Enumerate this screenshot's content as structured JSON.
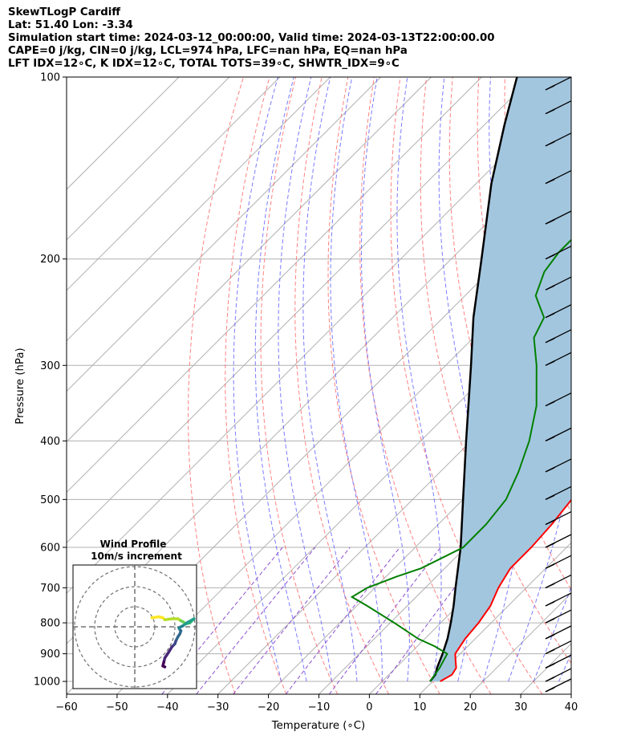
{
  "header": {
    "line1": "SkewTLogP Cardiff",
    "line2": "Lat: 51.40   Lon: -3.34",
    "line3": "Simulation start time: 2024-03-12_00:00:00, Valid time: 2024-03-13T22:00:00.00",
    "line4": "CAPE=0 j/kg, CIN=0 j/kg, LCL=974 hPa, LFC=nan hPa, EQ=nan hPa",
    "line5": "LFT IDX=12∘C, K IDX=12∘C, TOTAL TOTS=39∘C, SHWTR_IDX=9∘C"
  },
  "chart_data": {
    "type": "line",
    "xlabel": "Temperature (∘C)",
    "ylabel": "Pressure (hPa)",
    "xlim": [
      -60,
      40
    ],
    "ylim": [
      1050,
      100
    ],
    "yscale": "log",
    "skew": "45°",
    "grid": true,
    "x_ticks": [
      -60,
      -50,
      -40,
      -30,
      -20,
      -10,
      0,
      10,
      20,
      30,
      40
    ],
    "y_ticks": [
      100,
      200,
      300,
      400,
      500,
      600,
      700,
      800,
      900,
      1000
    ],
    "colors": {
      "temperature": "#ff0000",
      "dewpoint": "#008000",
      "parcel": "#000000",
      "shade": "#a3c6df",
      "dry_adiabats": "#ff6b6b",
      "moist_adiabats": "#5a5aff",
      "mixing_ratio": "#8d4fd1",
      "isotherms": "#b0b0b0"
    },
    "series": [
      {
        "role": "temperature",
        "points": [
          [
            1000,
            11.5
          ],
          [
            975,
            12.5
          ],
          [
            950,
            12.0
          ],
          [
            925,
            10.5
          ],
          [
            900,
            9.0
          ],
          [
            850,
            8.0
          ],
          [
            800,
            7.5
          ],
          [
            750,
            6.5
          ],
          [
            700,
            4.5
          ],
          [
            650,
            3.0
          ],
          [
            600,
            3.0
          ],
          [
            550,
            2.5
          ],
          [
            500,
            1.5
          ],
          [
            450,
            -1.0
          ],
          [
            400,
            -4.5
          ],
          [
            350,
            -10.5
          ],
          [
            300,
            -17.5
          ],
          [
            250,
            -25.5
          ],
          [
            230,
            -28.5
          ],
          [
            210,
            -28.3
          ],
          [
            190,
            -25.0
          ],
          [
            170,
            -24.0
          ],
          [
            150,
            -25.5
          ],
          [
            140,
            -23.0
          ],
          [
            130,
            -17.0
          ],
          [
            120,
            -13.0
          ],
          [
            110,
            -10.5
          ],
          [
            100,
            -9.0
          ]
        ]
      },
      {
        "role": "dewpoint",
        "points": [
          [
            1000,
            9.5
          ],
          [
            950,
            8.7
          ],
          [
            900,
            7.4
          ],
          [
            875,
            3.5
          ],
          [
            850,
            -1.3
          ],
          [
            800,
            -9.2
          ],
          [
            750,
            -17.9
          ],
          [
            725,
            -22.7
          ],
          [
            700,
            -21.5
          ],
          [
            670,
            -17.8
          ],
          [
            650,
            -14.7
          ],
          [
            600,
            -10.5
          ],
          [
            550,
            -10.5
          ],
          [
            500,
            -11.5
          ],
          [
            450,
            -14.5
          ],
          [
            400,
            -18.5
          ],
          [
            350,
            -24.0
          ],
          [
            300,
            -32.0
          ],
          [
            270,
            -38.0
          ],
          [
            250,
            -40.0
          ],
          [
            230,
            -46.0
          ],
          [
            210,
            -49.0
          ],
          [
            195,
            -50.0
          ],
          [
            175,
            -50.0
          ],
          [
            160,
            -51.0
          ],
          [
            150,
            -54.0
          ],
          [
            140,
            -57.0
          ],
          [
            130,
            -55.5
          ],
          [
            120,
            -53.5
          ],
          [
            110,
            -50.0
          ],
          [
            100,
            -48.0
          ]
        ]
      },
      {
        "role": "parcel",
        "points": [
          [
            1000,
            9.5
          ],
          [
            974,
            9.2
          ],
          [
            950,
            8.2
          ],
          [
            900,
            6.5
          ],
          [
            850,
            4.5
          ],
          [
            800,
            2.0
          ],
          [
            750,
            -0.8
          ],
          [
            700,
            -4.0
          ],
          [
            600,
            -11.0
          ],
          [
            500,
            -20.0
          ],
          [
            400,
            -31.0
          ],
          [
            300,
            -45.0
          ],
          [
            250,
            -54.0
          ],
          [
            200,
            -64.0
          ],
          [
            150,
            -77.0
          ],
          [
            120,
            -86.0
          ],
          [
            100,
            -93.0
          ]
        ]
      }
    ],
    "wind_barbs": {
      "direction": "WNW",
      "levels_hpa": [
        1040,
        1000,
        950,
        900,
        850,
        800,
        750,
        700,
        650,
        600,
        550,
        500,
        450,
        400,
        350,
        300,
        275,
        250,
        225,
        200,
        175,
        150,
        130,
        115,
        105
      ]
    },
    "inset": {
      "title_line1": "Wind Profile",
      "title_line2": "10m/s increment",
      "rings_ms": [
        10,
        20,
        30
      ],
      "hodograph_uv": [
        [
          4.5,
          8.5
        ],
        [
          5.0,
          12.0
        ],
        [
          4.5,
          14.0
        ],
        [
          3.5,
          15.0
        ],
        [
          4.0,
          18.5
        ],
        [
          4.0,
          21.5
        ],
        [
          3.0,
          23.0
        ],
        [
          2.5,
          24.0
        ],
        [
          1.5,
          25.5
        ],
        [
          2.0,
          27.5
        ],
        [
          3.5,
          29.0
        ],
        [
          4.0,
          29.5
        ],
        [
          2.0,
          26.0
        ],
        [
          0.5,
          24.0
        ],
        [
          -0.5,
          22.0
        ],
        [
          -1.5,
          22.5
        ],
        [
          -2.0,
          23.0
        ],
        [
          -3.5,
          22.5
        ],
        [
          -5.0,
          21.5
        ],
        [
          -7.0,
          20.5
        ],
        [
          -8.5,
          20.0
        ],
        [
          -10.0,
          18.5
        ],
        [
          -12.5,
          17.0
        ],
        [
          -15.5,
          15.0
        ],
        [
          -17.5,
          14.5
        ],
        [
          -19.5,
          14.0
        ],
        [
          -20.0,
          15.0
        ]
      ]
    }
  }
}
